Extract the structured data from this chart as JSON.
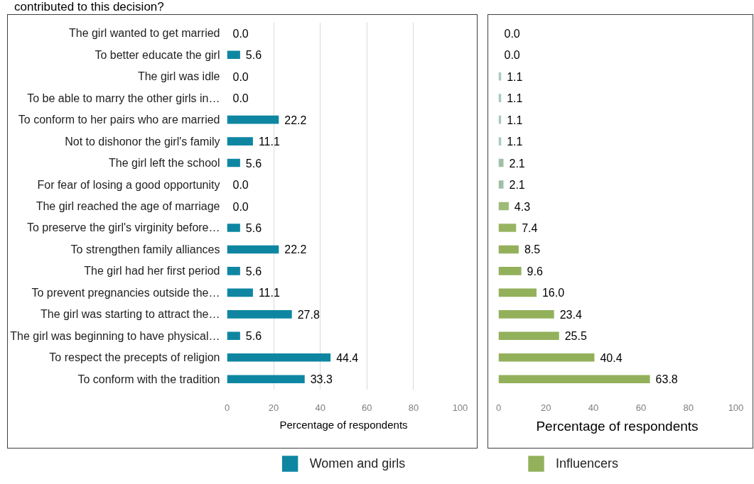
{
  "chart_data": [
    {
      "type": "bar",
      "title": "contributed to this decision?",
      "orientation": "horizontal",
      "categories": [
        "The girl wanted to get married",
        "To better educate the girl",
        "The girl was idle",
        "To be able to marry the other girls in…",
        "To conform to her pairs who are married",
        "Not to dishonor the girl's family",
        "The girl left the school",
        "For fear of losing a good opportunity",
        "The girl reached the age of marriage",
        "To preserve the girl's virginity before…",
        "To strengthen family alliances",
        "The girl had her first period",
        "To prevent pregnancies outside the…",
        "The girl was starting to attract the…",
        "The girl was beginning to have physical…",
        "To respect the precepts of religion",
        "To conform with the tradition"
      ],
      "series": [
        {
          "name": "Women and girls",
          "color": "#0e86a2",
          "values": [
            0.0,
            5.6,
            0.0,
            0.0,
            22.2,
            11.1,
            5.6,
            0.0,
            0.0,
            5.6,
            22.2,
            5.6,
            11.1,
            27.8,
            5.6,
            44.4,
            33.3
          ],
          "value_labels": [
            "0.0",
            "5.6",
            "0.0",
            "0.0",
            "22.2",
            "11.1",
            "5.6",
            "0.0",
            "0.0",
            "5.6",
            "22.2",
            "5.6",
            "11.1",
            "27.8",
            "5.6",
            "44.4",
            "33.3"
          ]
        }
      ],
      "xlabel": "Percentage of respondents",
      "xlim": [
        0,
        100
      ],
      "xticks": [
        0,
        20,
        40,
        60,
        80,
        100
      ],
      "grid": "x",
      "legend": "bottom"
    },
    {
      "type": "bar",
      "orientation": "horizontal",
      "categories": [
        null,
        null,
        null,
        null,
        null,
        null,
        null,
        null,
        null,
        null,
        null,
        null,
        null,
        null,
        null,
        null,
        null
      ],
      "series": [
        {
          "name": "Influencers",
          "color": "#93b15b",
          "colors": [
            "#a9cdc7",
            "#a9cdc7",
            "#a8cbbf",
            "#a8cbbf",
            "#a8cbbf",
            "#a8cbbf",
            "#9fbfa6",
            "#9fbfa6",
            "#9cbb77",
            "#97b560",
            "#93b15b",
            "#93b15b",
            "#93b15b",
            "#93b15b",
            "#93b15b",
            "#93b15b",
            "#93b15b"
          ],
          "values": [
            0.0,
            0.0,
            1.1,
            1.1,
            1.1,
            1.1,
            2.1,
            2.1,
            4.3,
            7.4,
            8.5,
            9.6,
            16.0,
            23.4,
            25.5,
            40.4,
            63.8
          ],
          "value_labels": [
            "0.0",
            "0.0",
            "1.1",
            "1.1",
            "1.1",
            "1.1",
            "2.1",
            "2.1",
            "4.3",
            "7.4",
            "8.5",
            "9.6",
            "16.0",
            "23.4",
            "25.5",
            "40.4",
            "63.8"
          ]
        }
      ],
      "xlabel": "Percentage of respondents",
      "xlim": [
        0,
        100
      ],
      "xticks": [
        0,
        20,
        40,
        60,
        80,
        100
      ],
      "tick_labels": "x",
      "legend": "bottom"
    }
  ]
}
